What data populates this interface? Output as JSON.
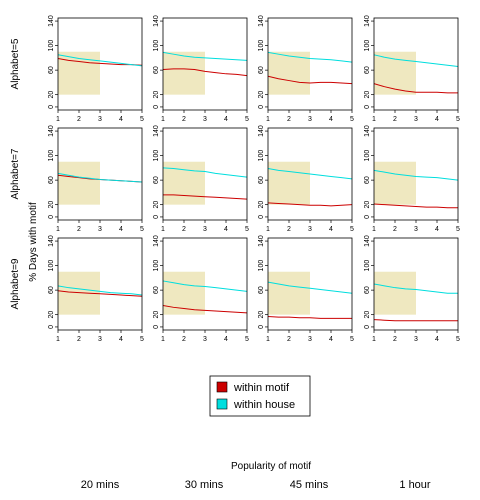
{
  "chart_data": {
    "type": "line",
    "layout": "small-multiples grid, 3 rows x 4 columns",
    "ylabel": "% Days with motif",
    "xlabel": "Popularity of motif",
    "x": [
      1,
      1.5,
      2,
      2.5,
      3,
      3.5,
      4,
      4.5,
      5
    ],
    "x_ticks": [
      1,
      2,
      3,
      4,
      5
    ],
    "y_ticks": [
      0,
      20,
      60,
      100,
      140
    ],
    "ylim": [
      -5,
      145
    ],
    "xlim": [
      1,
      5
    ],
    "highlight_region": {
      "x": [
        1,
        3
      ],
      "y": [
        20,
        90
      ],
      "color": "#efe8c0"
    },
    "row_labels": [
      "Alphabet=5",
      "Alphabet=7",
      "Alphabet=9"
    ],
    "column_labels": [
      "20 mins",
      "30 mins",
      "45 mins",
      "1 hour"
    ],
    "legend": {
      "placement": "bottom-center",
      "entries": [
        {
          "label": "within motif",
          "color": "#cc0000"
        },
        {
          "label": "within house",
          "color": "#00dede"
        }
      ]
    },
    "panels": [
      {
        "row": 0,
        "col": 0,
        "series": [
          {
            "name": "within motif",
            "values": [
              79,
              76,
              74,
              72,
              71,
              70,
              69,
              69,
              68
            ]
          },
          {
            "name": "within house",
            "values": [
              85,
              82,
              79,
              77,
              75,
              73,
              71,
              69,
              67
            ]
          }
        ]
      },
      {
        "row": 0,
        "col": 1,
        "series": [
          {
            "name": "within motif",
            "values": [
              61,
              62,
              62,
              61,
              58,
              56,
              54,
              53,
              51
            ]
          },
          {
            "name": "within house",
            "values": [
              89,
              86,
              83,
              81,
              80,
              79,
              78,
              77,
              76
            ]
          }
        ]
      },
      {
        "row": 0,
        "col": 2,
        "series": [
          {
            "name": "within motif",
            "values": [
              50,
              46,
              43,
              40,
              39,
              40,
              40,
              39,
              38
            ]
          },
          {
            "name": "within house",
            "values": [
              89,
              86,
              83,
              81,
              79,
              78,
              77,
              75,
              73
            ]
          }
        ]
      },
      {
        "row": 0,
        "col": 3,
        "series": [
          {
            "name": "within motif",
            "values": [
              38,
              33,
              29,
              26,
              24,
              24,
              24,
              23,
              23
            ]
          },
          {
            "name": "within house",
            "values": [
              85,
              81,
              78,
              76,
              74,
              72,
              70,
              68,
              66
            ]
          }
        ]
      },
      {
        "row": 1,
        "col": 0,
        "series": [
          {
            "name": "within motif",
            "values": [
              68,
              66,
              64,
              62,
              61,
              60,
              59,
              58,
              57
            ]
          },
          {
            "name": "within house",
            "values": [
              71,
              68,
              65,
              63,
              61,
              60,
              59,
              58,
              57
            ]
          }
        ]
      },
      {
        "row": 1,
        "col": 1,
        "series": [
          {
            "name": "within motif",
            "values": [
              36,
              36,
              35,
              34,
              33,
              32,
              31,
              30,
              29
            ]
          },
          {
            "name": "within house",
            "values": [
              80,
              79,
              77,
              75,
              74,
              71,
              69,
              67,
              65
            ]
          }
        ]
      },
      {
        "row": 1,
        "col": 2,
        "series": [
          {
            "name": "within motif",
            "values": [
              23,
              22,
              21,
              20,
              19,
              19,
              18,
              19,
              20
            ]
          },
          {
            "name": "within house",
            "values": [
              79,
              76,
              74,
              72,
              70,
              68,
              66,
              64,
              62
            ]
          }
        ]
      },
      {
        "row": 1,
        "col": 3,
        "series": [
          {
            "name": "within motif",
            "values": [
              21,
              20,
              19,
              18,
              17,
              16,
              16,
              15,
              15
            ]
          },
          {
            "name": "within house",
            "values": [
              76,
              73,
              70,
              68,
              66,
              65,
              64,
              62,
              60
            ]
          }
        ]
      },
      {
        "row": 2,
        "col": 0,
        "series": [
          {
            "name": "within motif",
            "values": [
              59,
              57,
              56,
              55,
              54,
              53,
              52,
              51,
              50
            ]
          },
          {
            "name": "within house",
            "values": [
              67,
              64,
              62,
              60,
              58,
              56,
              55,
              54,
              52
            ]
          }
        ]
      },
      {
        "row": 2,
        "col": 1,
        "series": [
          {
            "name": "within motif",
            "values": [
              35,
              32,
              30,
              28,
              27,
              26,
              25,
              24,
              23
            ]
          },
          {
            "name": "within house",
            "values": [
              75,
              72,
              69,
              67,
              66,
              64,
              62,
              60,
              58
            ]
          }
        ]
      },
      {
        "row": 2,
        "col": 2,
        "series": [
          {
            "name": "within motif",
            "values": [
              17,
              16,
              16,
              15,
              15,
              14,
              14,
              14,
              14
            ]
          },
          {
            "name": "within house",
            "values": [
              73,
              70,
              67,
              65,
              63,
              61,
              59,
              57,
              55
            ]
          }
        ]
      },
      {
        "row": 2,
        "col": 3,
        "series": [
          {
            "name": "within motif",
            "values": [
              12,
              11,
              10,
              10,
              10,
              10,
              10,
              10,
              10
            ]
          },
          {
            "name": "within house",
            "values": [
              70,
              67,
              64,
              62,
              61,
              59,
              57,
              55,
              55
            ]
          }
        ]
      }
    ]
  }
}
